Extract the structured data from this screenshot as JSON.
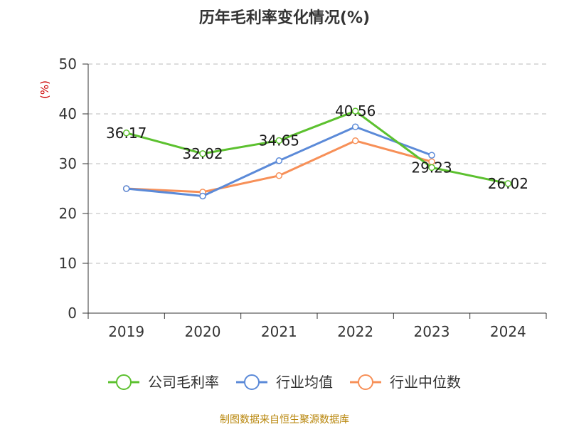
{
  "chart_data": {
    "type": "line",
    "title": "历年毛利率变化情况(%)",
    "ylabel": "(%)",
    "xlabel": "",
    "categories": [
      "2019",
      "2020",
      "2021",
      "2022",
      "2023",
      "2024"
    ],
    "ylim": [
      0,
      50
    ],
    "yticks": [
      "0",
      "10",
      "20",
      "30",
      "40",
      "50"
    ],
    "grid": true,
    "legend_position": "bottom",
    "series": [
      {
        "name": "公司毛利率",
        "color": "#5cc12f",
        "values": [
          36.17,
          32.02,
          34.65,
          40.56,
          29.23,
          26.02
        ],
        "labels": [
          "36.17",
          "32.02",
          "34.65",
          "40.56",
          "29.23",
          "26.02"
        ]
      },
      {
        "name": "行业均值",
        "color": "#5b8ad8",
        "values": [
          25.0,
          23.5,
          30.6,
          37.4,
          31.7,
          null
        ]
      },
      {
        "name": "行业中位数",
        "color": "#f79058",
        "values": [
          25.0,
          24.3,
          27.6,
          34.6,
          30.4,
          null
        ]
      }
    ]
  },
  "source_note": "制图数据来自恒生聚源数据库"
}
